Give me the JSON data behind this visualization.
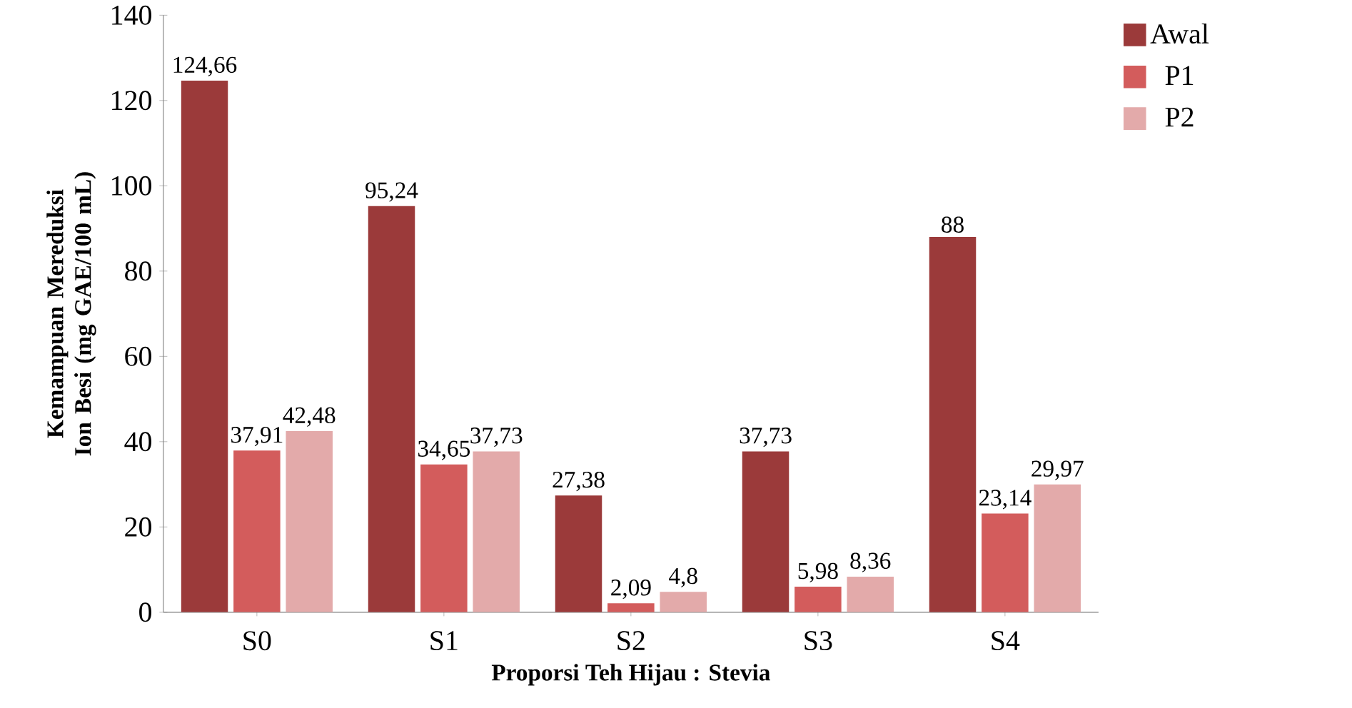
{
  "chart_data": {
    "type": "bar",
    "xlabel": "Proporsi Teh Hijau : Stevia",
    "ylabel": "Kemampuan Mereduksi Ion Besi (mg GAE/100 mL)",
    "categories": [
      "S0",
      "S1",
      "S2",
      "S3",
      "S4"
    ],
    "series": [
      {
        "name": "Awal",
        "color": "#9b3a3a",
        "values": [
          124.66,
          95.24,
          27.38,
          37.73,
          88
        ],
        "value_labels": [
          "124,66",
          "95,24",
          "27,38",
          "37,73",
          "88"
        ]
      },
      {
        "name": "P1",
        "color": "#d35c5c",
        "values": [
          37.91,
          34.65,
          2.09,
          5.98,
          23.14
        ],
        "value_labels": [
          "37,91",
          "34,65",
          "2,09",
          "5,98",
          "23,14"
        ]
      },
      {
        "name": "P2",
        "color": "#e3aaaa",
        "values": [
          42.48,
          37.73,
          4.8,
          8.36,
          29.97
        ],
        "value_labels": [
          "42,48",
          "37,73",
          "4,8",
          "8,36",
          "29,97"
        ]
      }
    ],
    "ylim": [
      0,
      140
    ],
    "yticks": [
      0,
      20,
      40,
      60,
      80,
      100,
      120,
      140
    ],
    "grid": false,
    "legend": "top right"
  }
}
